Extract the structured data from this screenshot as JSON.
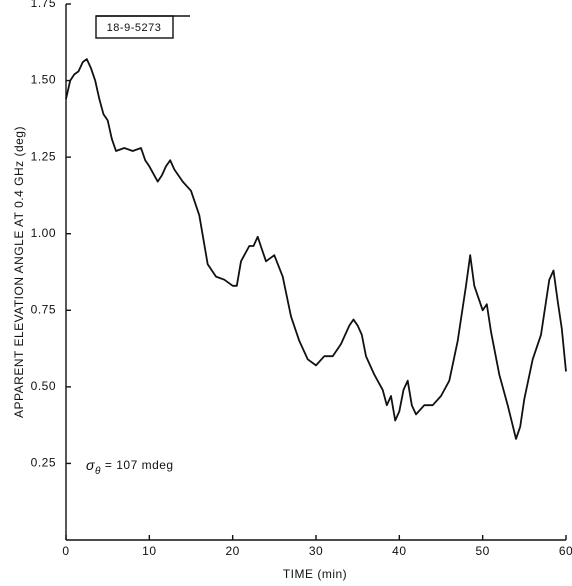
{
  "chart_data": {
    "type": "line",
    "y_label": "APPARENT ELEVATION ANGLE AT 0.4 GHz (deg)",
    "x_label": "TIME (min)",
    "figure_id": "18-9-5273",
    "annotation": {
      "symbol": "σ",
      "subscript": "θ",
      "text": "= 107 mdeg"
    },
    "x": [
      0,
      0.5,
      1,
      1.5,
      2,
      2.5,
      3,
      3.5,
      4,
      4.5,
      5,
      5.5,
      6,
      7,
      8,
      9,
      9.5,
      10,
      11,
      11.5,
      12,
      12.5,
      13,
      14,
      15,
      16,
      16.5,
      17,
      18,
      19,
      20,
      20.5,
      21,
      22,
      22.5,
      23,
      23.5,
      24,
      25,
      26,
      27,
      28,
      29,
      30,
      31,
      32,
      33,
      34,
      34.5,
      35,
      35.5,
      36,
      37,
      38,
      38.5,
      39,
      39.5,
      40,
      40.5,
      41,
      41.5,
      42,
      43,
      44,
      45,
      46,
      47,
      48,
      48.5,
      49,
      50,
      50.5,
      51,
      52,
      53,
      54,
      54.5,
      55,
      56,
      57,
      58,
      58.5,
      59,
      59.5,
      60
    ],
    "series": [
      {
        "color": "#111111",
        "values": [
          1.44,
          1.5,
          1.52,
          1.53,
          1.56,
          1.57,
          1.54,
          1.5,
          1.44,
          1.39,
          1.37,
          1.31,
          1.27,
          1.28,
          1.27,
          1.28,
          1.24,
          1.22,
          1.17,
          1.19,
          1.22,
          1.24,
          1.21,
          1.17,
          1.14,
          1.06,
          0.98,
          0.9,
          0.86,
          0.85,
          0.83,
          0.83,
          0.91,
          0.96,
          0.96,
          0.99,
          0.95,
          0.91,
          0.93,
          0.86,
          0.73,
          0.65,
          0.59,
          0.57,
          0.6,
          0.6,
          0.64,
          0.7,
          0.72,
          0.7,
          0.67,
          0.6,
          0.54,
          0.49,
          0.44,
          0.47,
          0.39,
          0.42,
          0.49,
          0.52,
          0.44,
          0.41,
          0.44,
          0.44,
          0.47,
          0.52,
          0.65,
          0.83,
          0.93,
          0.83,
          0.75,
          0.77,
          0.68,
          0.54,
          0.44,
          0.33,
          0.37,
          0.46,
          0.59,
          0.67,
          0.85,
          0.88,
          0.78,
          0.69,
          0.55
        ]
      }
    ],
    "xlim": [
      0,
      60
    ],
    "xticks": [
      0,
      10,
      20,
      30,
      40,
      50,
      60
    ],
    "ylim": [
      0,
      1.75
    ],
    "yticks": [
      {
        "value": 0.25,
        "label": "0.25"
      },
      {
        "value": 0.5,
        "label": "0.50"
      },
      {
        "value": 0.75,
        "label": "0.75"
      },
      {
        "value": 1,
        "label": "1.00"
      },
      {
        "value": 1.25,
        "label": "1.25"
      },
      {
        "value": 1.5,
        "label": "1.50"
      },
      {
        "value": 1.75,
        "label": "1.75"
      }
    ]
  }
}
